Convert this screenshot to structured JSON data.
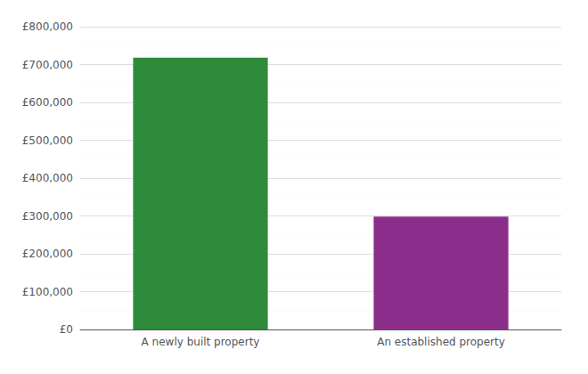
{
  "chart_data": {
    "type": "bar",
    "categories": [
      "A newly built property",
      "An established property"
    ],
    "values": [
      718000,
      298000
    ],
    "colors": [
      "#2e8b3a",
      "#8b2e8b"
    ],
    "ylim": [
      0,
      800000
    ],
    "yticks": [
      {
        "value": 0,
        "label": "£0"
      },
      {
        "value": 100000,
        "label": "£100,000"
      },
      {
        "value": 200000,
        "label": "£200,000"
      },
      {
        "value": 300000,
        "label": "£300,000"
      },
      {
        "value": 400000,
        "label": "£400,000"
      },
      {
        "value": 500000,
        "label": "£500,000"
      },
      {
        "value": 600000,
        "label": "£600,000"
      },
      {
        "value": 700000,
        "label": "£700,000"
      },
      {
        "value": 800000,
        "label": "£800,000"
      }
    ],
    "grid": true
  }
}
